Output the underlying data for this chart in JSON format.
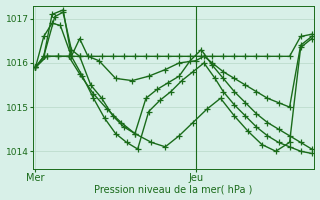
{
  "title": "",
  "xlabel": "Pression niveau de la mer( hPa )",
  "bg_color": "#d8f0e8",
  "line_color": "#1a6b1a",
  "grid_color": "#b8d8c8",
  "ylim": [
    1013.6,
    1017.3
  ],
  "yticks": [
    1014,
    1015,
    1016,
    1017
  ],
  "xtick_positions": [
    0,
    0.58
  ],
  "xtick_labels": [
    "Mer",
    "Jeu"
  ],
  "marker": "+",
  "markersize": 4,
  "linewidth": 1.0,
  "series": [
    {
      "x": [
        0.0,
        0.04,
        0.08,
        0.12,
        0.16,
        0.2,
        0.24,
        0.28,
        0.32,
        0.36,
        0.4,
        0.44,
        0.48,
        0.52,
        0.56,
        0.6,
        0.64,
        0.68,
        0.72,
        0.76,
        0.8,
        0.84,
        0.88,
        0.92,
        0.96,
        1.0
      ],
      "y": [
        1015.9,
        1016.15,
        1016.15,
        1016.15,
        1016.15,
        1016.15,
        1016.15,
        1016.15,
        1016.15,
        1016.15,
        1016.15,
        1016.15,
        1016.15,
        1016.15,
        1016.15,
        1016.15,
        1016.15,
        1016.15,
        1016.15,
        1016.15,
        1016.15,
        1016.15,
        1016.15,
        1016.15,
        1016.6,
        1016.65
      ]
    },
    {
      "x": [
        0.0,
        0.03,
        0.06,
        0.09,
        0.13,
        0.16,
        0.19,
        0.23,
        0.29,
        0.35,
        0.41,
        0.47,
        0.52,
        0.58,
        0.61,
        0.64,
        0.68,
        0.72,
        0.76,
        0.8,
        0.84,
        0.88,
        0.92,
        0.96,
        1.0
      ],
      "y": [
        1015.9,
        1016.6,
        1016.9,
        1016.85,
        1016.15,
        1016.55,
        1016.15,
        1016.05,
        1015.65,
        1015.6,
        1015.7,
        1015.85,
        1016.0,
        1016.05,
        1016.15,
        1016.0,
        1015.8,
        1015.65,
        1015.5,
        1015.35,
        1015.2,
        1015.1,
        1015.0,
        1016.4,
        1016.6
      ]
    },
    {
      "x": [
        0.0,
        0.03,
        0.07,
        0.1,
        0.13,
        0.16,
        0.2,
        0.24,
        0.28,
        0.32,
        0.36,
        0.4,
        0.44,
        0.48,
        0.52,
        0.56,
        0.6,
        0.64,
        0.68,
        0.72,
        0.76,
        0.8,
        0.84,
        0.88,
        0.92,
        0.96,
        1.0
      ],
      "y": [
        1015.9,
        1016.15,
        1017.05,
        1017.15,
        1016.3,
        1016.15,
        1015.5,
        1015.2,
        1014.8,
        1014.55,
        1014.4,
        1015.2,
        1015.4,
        1015.55,
        1015.7,
        1016.05,
        1016.3,
        1015.95,
        1015.65,
        1015.35,
        1015.1,
        1014.85,
        1014.65,
        1014.5,
        1014.35,
        1014.2,
        1014.05
      ]
    },
    {
      "x": [
        0.0,
        0.03,
        0.06,
        0.1,
        0.13,
        0.17,
        0.21,
        0.25,
        0.29,
        0.33,
        0.37,
        0.41,
        0.45,
        0.49,
        0.53,
        0.57,
        0.61,
        0.65,
        0.68,
        0.72,
        0.76,
        0.8,
        0.84,
        0.88,
        0.92,
        0.96,
        1.0
      ],
      "y": [
        1015.9,
        1016.15,
        1017.1,
        1017.2,
        1016.15,
        1015.7,
        1015.2,
        1014.75,
        1014.4,
        1014.2,
        1014.05,
        1014.9,
        1015.15,
        1015.35,
        1015.6,
        1015.8,
        1016.0,
        1015.65,
        1015.35,
        1015.05,
        1014.8,
        1014.55,
        1014.35,
        1014.2,
        1014.1,
        1014.0,
        1013.95
      ]
    },
    {
      "x": [
        0.0,
        0.04,
        0.08,
        0.12,
        0.16,
        0.21,
        0.26,
        0.31,
        0.36,
        0.42,
        0.47,
        0.52,
        0.57,
        0.62,
        0.67,
        0.72,
        0.77,
        0.82,
        0.87,
        0.92,
        0.96,
        1.0
      ],
      "y": [
        1015.9,
        1016.15,
        1016.15,
        1016.15,
        1015.75,
        1015.3,
        1014.95,
        1014.65,
        1014.4,
        1014.2,
        1014.1,
        1014.35,
        1014.65,
        1014.95,
        1015.2,
        1014.8,
        1014.45,
        1014.15,
        1014.0,
        1014.2,
        1016.35,
        1016.55
      ]
    }
  ],
  "vline_x": 0.58,
  "figsize": [
    3.2,
    2.0
  ],
  "dpi": 100
}
